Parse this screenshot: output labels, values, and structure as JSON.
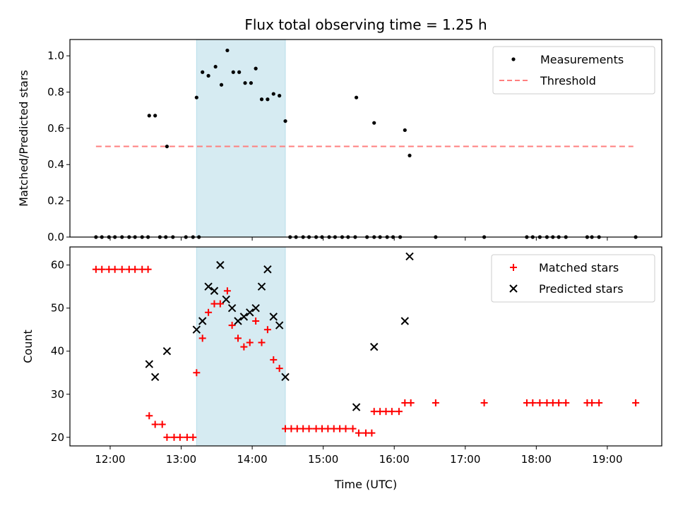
{
  "chart_data": [
    {
      "type": "scatter",
      "title": "Flux total observing time = 1.25 h",
      "xlabel": "",
      "ylabel": "Matched/Predicted stars",
      "xlim": [
        "11:26",
        "19:46"
      ],
      "ylim": [
        0,
        1.09
      ],
      "yticks": [
        "0.0",
        "0.2",
        "0.4",
        "0.6",
        "0.8",
        "1.0"
      ],
      "highlight_span": {
        "start": "13:13",
        "end": "14:28",
        "color": "#add8e6"
      },
      "legend_position": "upper-right",
      "series": [
        {
          "name": "Measurements",
          "marker": "dot",
          "color": "#000000",
          "points": [
            [
              "11:48",
              0
            ],
            [
              "11:53",
              0
            ],
            [
              "11:59",
              0
            ],
            [
              "12:04",
              0
            ],
            [
              "12:10",
              0
            ],
            [
              "12:16",
              0
            ],
            [
              "12:21",
              0
            ],
            [
              "12:27",
              0
            ],
            [
              "12:32",
              0
            ],
            [
              "12:42",
              0
            ],
            [
              "13:04",
              0
            ],
            [
              "13:10",
              0
            ],
            [
              "13:15",
              0
            ],
            [
              "12:53",
              0
            ],
            [
              "12:47",
              0
            ],
            [
              "12:33",
              0.67
            ],
            [
              "12:38",
              0.67
            ],
            [
              "12:48",
              0.5
            ],
            [
              "13:13",
              0.77
            ],
            [
              "13:18",
              0.91
            ],
            [
              "13:23",
              0.89
            ],
            [
              "13:29",
              0.94
            ],
            [
              "13:34",
              0.84
            ],
            [
              "13:39",
              1.03
            ],
            [
              "13:44",
              0.91
            ],
            [
              "13:49",
              0.91
            ],
            [
              "13:54",
              0.85
            ],
            [
              "13:59",
              0.85
            ],
            [
              "14:03",
              0.93
            ],
            [
              "14:08",
              0.76
            ],
            [
              "14:13",
              0.76
            ],
            [
              "14:18",
              0.79
            ],
            [
              "14:23",
              0.78
            ],
            [
              "14:28",
              0.64
            ],
            [
              "14:32",
              0
            ],
            [
              "14:37",
              0
            ],
            [
              "14:43",
              0
            ],
            [
              "14:48",
              0
            ],
            [
              "14:54",
              0
            ],
            [
              "14:59",
              0
            ],
            [
              "15:05",
              0
            ],
            [
              "15:10",
              0
            ],
            [
              "15:16",
              0
            ],
            [
              "15:21",
              0
            ],
            [
              "15:27",
              0
            ],
            [
              "15:37",
              0
            ],
            [
              "15:43",
              0
            ],
            [
              "15:48",
              0
            ],
            [
              "15:54",
              0
            ],
            [
              "15:59",
              0
            ],
            [
              "16:05",
              0
            ],
            [
              "15:28",
              0.77
            ],
            [
              "15:43",
              0.63
            ],
            [
              "16:09",
              0.59
            ],
            [
              "16:13",
              0.45
            ],
            [
              "16:35",
              0
            ],
            [
              "17:16",
              0
            ],
            [
              "17:52",
              0
            ],
            [
              "17:57",
              0
            ],
            [
              "18:03",
              0
            ],
            [
              "18:09",
              0
            ],
            [
              "18:14",
              0
            ],
            [
              "18:19",
              0
            ],
            [
              "18:25",
              0
            ],
            [
              "18:43",
              0
            ],
            [
              "18:47",
              0
            ],
            [
              "18:53",
              0
            ],
            [
              "19:24",
              0
            ]
          ]
        },
        {
          "name": "Threshold",
          "marker": "dashed-line",
          "color": "#ff7f7f",
          "points": [
            [
              "11:48",
              0.5
            ],
            [
              "19:22",
              0.5
            ]
          ]
        }
      ]
    },
    {
      "type": "scatter",
      "title": "",
      "xlabel": "Time (UTC)",
      "ylabel": "Count",
      "xlim": [
        "11:26",
        "19:46"
      ],
      "ylim": [
        18,
        64.2
      ],
      "xticks": [
        "12:00",
        "13:00",
        "14:00",
        "15:00",
        "16:00",
        "17:00",
        "18:00",
        "19:00"
      ],
      "yticks": [
        "20",
        "30",
        "40",
        "50",
        "60"
      ],
      "highlight_span": {
        "start": "13:13",
        "end": "14:28",
        "color": "#add8e6"
      },
      "legend_position": "upper-right",
      "series": [
        {
          "name": "Matched stars",
          "marker": "plus",
          "color": "#ff0000",
          "points": [
            [
              "11:48",
              59
            ],
            [
              "11:53",
              59
            ],
            [
              "11:59",
              59
            ],
            [
              "12:04",
              59
            ],
            [
              "12:10",
              59
            ],
            [
              "12:16",
              59
            ],
            [
              "12:21",
              59
            ],
            [
              "12:27",
              59
            ],
            [
              "12:32",
              59
            ],
            [
              "12:33",
              25
            ],
            [
              "12:38",
              23
            ],
            [
              "12:44",
              23
            ],
            [
              "12:48",
              20
            ],
            [
              "12:54",
              20
            ],
            [
              "12:59",
              20
            ],
            [
              "13:05",
              20
            ],
            [
              "13:10",
              20
            ],
            [
              "13:13",
              35
            ],
            [
              "13:18",
              43
            ],
            [
              "13:23",
              49
            ],
            [
              "13:28",
              51
            ],
            [
              "13:33",
              51
            ],
            [
              "13:39",
              54
            ],
            [
              "13:43",
              46
            ],
            [
              "13:48",
              43
            ],
            [
              "13:53",
              41
            ],
            [
              "13:58",
              42
            ],
            [
              "14:03",
              47
            ],
            [
              "14:08",
              42
            ],
            [
              "14:13",
              45
            ],
            [
              "14:18",
              38
            ],
            [
              "14:23",
              36
            ],
            [
              "14:28",
              22
            ],
            [
              "14:33",
              22
            ],
            [
              "14:38",
              22
            ],
            [
              "14:43",
              22
            ],
            [
              "14:48",
              22
            ],
            [
              "14:54",
              22
            ],
            [
              "14:59",
              22
            ],
            [
              "15:04",
              22
            ],
            [
              "15:09",
              22
            ],
            [
              "15:14",
              22
            ],
            [
              "15:19",
              22
            ],
            [
              "15:25",
              22
            ],
            [
              "15:30",
              21
            ],
            [
              "15:36",
              21
            ],
            [
              "15:41",
              21
            ],
            [
              "15:43",
              26
            ],
            [
              "15:48",
              26
            ],
            [
              "15:53",
              26
            ],
            [
              "15:58",
              26
            ],
            [
              "16:04",
              26
            ],
            [
              "16:09",
              28
            ],
            [
              "16:14",
              28
            ],
            [
              "16:35",
              28
            ],
            [
              "17:16",
              28
            ],
            [
              "17:52",
              28
            ],
            [
              "17:57",
              28
            ],
            [
              "18:03",
              28
            ],
            [
              "18:09",
              28
            ],
            [
              "18:14",
              28
            ],
            [
              "18:19",
              28
            ],
            [
              "18:25",
              28
            ],
            [
              "18:43",
              28
            ],
            [
              "18:47",
              28
            ],
            [
              "18:53",
              28
            ],
            [
              "19:24",
              28
            ]
          ]
        },
        {
          "name": "Predicted stars",
          "marker": "x",
          "color": "#000000",
          "points": [
            [
              "12:33",
              37
            ],
            [
              "12:38",
              34
            ],
            [
              "12:48",
              40
            ],
            [
              "13:13",
              45
            ],
            [
              "13:18",
              47
            ],
            [
              "13:23",
              55
            ],
            [
              "13:28",
              54
            ],
            [
              "13:33",
              60
            ],
            [
              "13:38",
              52
            ],
            [
              "13:43",
              50
            ],
            [
              "13:48",
              47
            ],
            [
              "13:53",
              48
            ],
            [
              "13:58",
              49
            ],
            [
              "14:03",
              50
            ],
            [
              "14:08",
              55
            ],
            [
              "14:13",
              59
            ],
            [
              "14:18",
              48
            ],
            [
              "14:23",
              46
            ],
            [
              "14:28",
              34
            ],
            [
              "15:28",
              27
            ],
            [
              "15:43",
              41
            ],
            [
              "16:09",
              47
            ],
            [
              "16:13",
              62
            ]
          ]
        }
      ]
    }
  ]
}
